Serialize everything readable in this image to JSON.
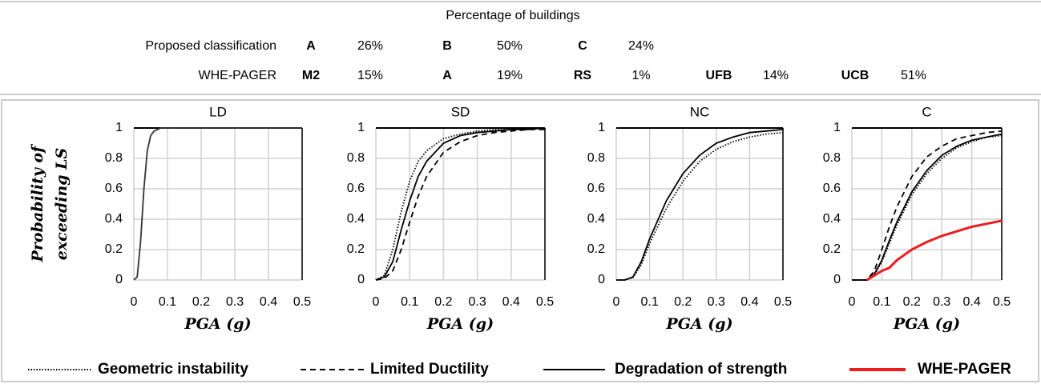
{
  "table": {
    "title": "Percentage of buildings",
    "rows": [
      [
        "Proposed classification",
        "A",
        "26%",
        "B",
        "50%",
        "C",
        "24%"
      ],
      [
        "WHE-PAGER",
        "M2",
        "15%",
        "A",
        "19%",
        "RS",
        "1%",
        "UFB",
        "14%",
        "UCB",
        "51%"
      ]
    ]
  },
  "chart_data": [
    {
      "type": "line",
      "title": "LD",
      "ylabel": [
        "Probability of",
        "exceeding LS"
      ],
      "xlabel": "PGA (g)",
      "x": [
        0,
        0.01,
        0.02,
        0.03,
        0.04,
        0.05,
        0.06,
        0.07,
        0.08,
        0.1,
        0.15,
        0.2,
        0.3,
        0.4,
        0.5
      ],
      "series": [
        {
          "name": "Degradation of strength",
          "color": "#333333",
          "dash": "solid",
          "values": [
            0,
            0.02,
            0.25,
            0.6,
            0.85,
            0.95,
            0.98,
            0.99,
            1,
            1,
            1,
            1,
            1,
            1,
            1
          ]
        }
      ],
      "xlim": [
        0,
        0.5
      ],
      "ylim": [
        0,
        1
      ],
      "xticks": [
        0,
        0.1,
        0.2,
        0.3,
        0.4,
        0.5
      ],
      "yticks": [
        0,
        0.2,
        0.4,
        0.6,
        0.8,
        1
      ],
      "grid": true
    },
    {
      "type": "line",
      "title": "SD",
      "xlabel": "PGA (g)",
      "x": [
        0,
        0.025,
        0.05,
        0.075,
        0.1,
        0.125,
        0.15,
        0.2,
        0.25,
        0.3,
        0.35,
        0.4,
        0.45,
        0.5
      ],
      "series": [
        {
          "name": "Geometric instability",
          "color": "#000000",
          "dash": "dotted",
          "values": [
            0,
            0.03,
            0.2,
            0.45,
            0.65,
            0.78,
            0.85,
            0.93,
            0.96,
            0.98,
            0.99,
            0.99,
            1,
            1
          ]
        },
        {
          "name": "Limited  Ductility",
          "color": "#000000",
          "dash": "dashed",
          "values": [
            0,
            0.01,
            0.06,
            0.2,
            0.38,
            0.55,
            0.68,
            0.84,
            0.91,
            0.95,
            0.97,
            0.98,
            0.99,
            0.99
          ]
        },
        {
          "name": "Degradation of strength",
          "color": "#000000",
          "dash": "solid",
          "values": [
            0,
            0.02,
            0.12,
            0.33,
            0.52,
            0.68,
            0.78,
            0.9,
            0.95,
            0.97,
            0.98,
            0.99,
            0.99,
            1
          ]
        }
      ],
      "xlim": [
        0,
        0.5
      ],
      "ylim": [
        0,
        1
      ],
      "xticks": [
        0,
        0.1,
        0.2,
        0.3,
        0.4,
        0.5
      ],
      "yticks": [
        0,
        0.2,
        0.4,
        0.6,
        0.8,
        1
      ],
      "grid": true
    },
    {
      "type": "line",
      "title": "NC",
      "xlabel": "PGA (g)",
      "x": [
        0,
        0.025,
        0.05,
        0.075,
        0.1,
        0.15,
        0.2,
        0.25,
        0.3,
        0.35,
        0.4,
        0.45,
        0.5
      ],
      "series": [
        {
          "name": "Geometric instability",
          "color": "#000000",
          "dash": "dotted",
          "values": [
            0,
            0,
            0.015,
            0.1,
            0.24,
            0.47,
            0.65,
            0.78,
            0.86,
            0.91,
            0.94,
            0.96,
            0.97
          ]
        },
        {
          "name": "Degradation of strength",
          "color": "#000000",
          "dash": "solid",
          "values": [
            0,
            0,
            0.02,
            0.12,
            0.27,
            0.52,
            0.7,
            0.82,
            0.9,
            0.94,
            0.97,
            0.98,
            0.99
          ]
        }
      ],
      "xlim": [
        0,
        0.5
      ],
      "ylim": [
        0,
        1
      ],
      "xticks": [
        0,
        0.1,
        0.2,
        0.3,
        0.4,
        0.5
      ],
      "yticks": [
        0,
        0.2,
        0.4,
        0.6,
        0.8,
        1
      ],
      "grid": true
    },
    {
      "type": "line",
      "title": "C",
      "xlabel": "PGA (g)",
      "x": [
        0,
        0.05,
        0.075,
        0.1,
        0.125,
        0.15,
        0.2,
        0.25,
        0.3,
        0.35,
        0.4,
        0.45,
        0.5
      ],
      "series": [
        {
          "name": "Geometric instability",
          "color": "#000000",
          "dash": "dotted",
          "values": [
            0,
            0,
            0.03,
            0.12,
            0.24,
            0.36,
            0.56,
            0.7,
            0.8,
            0.87,
            0.91,
            0.94,
            0.95
          ]
        },
        {
          "name": "Limited  Ductility",
          "color": "#000000",
          "dash": "dashed",
          "values": [
            0,
            0,
            0.06,
            0.2,
            0.35,
            0.48,
            0.68,
            0.81,
            0.88,
            0.93,
            0.95,
            0.97,
            0.98
          ]
        },
        {
          "name": "Degradation of strength",
          "color": "#000000",
          "dash": "solid",
          "values": [
            0,
            0,
            0.04,
            0.13,
            0.26,
            0.38,
            0.58,
            0.72,
            0.82,
            0.88,
            0.92,
            0.94,
            0.96
          ]
        },
        {
          "name": "WHE-PAGER",
          "color": "#ee1c1c",
          "dash": "solid",
          "values": [
            null,
            0,
            0.03,
            0.06,
            0.08,
            0.13,
            0.2,
            0.25,
            0.29,
            0.32,
            0.35,
            0.37,
            0.39
          ]
        }
      ],
      "xlim": [
        0,
        0.5
      ],
      "ylim": [
        0,
        1
      ],
      "xticks": [
        0,
        0.1,
        0.2,
        0.3,
        0.4,
        0.5
      ],
      "yticks": [
        0,
        0.2,
        0.4,
        0.6,
        0.8,
        1
      ],
      "grid": true
    }
  ]
}
